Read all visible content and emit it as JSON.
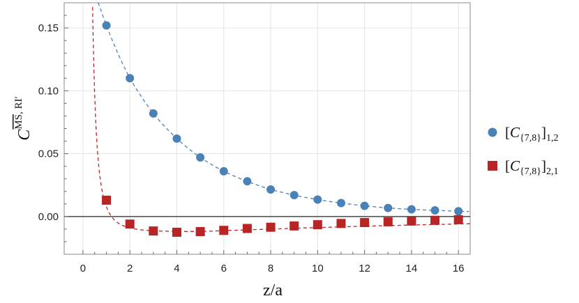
{
  "chart_data": {
    "type": "scatter",
    "xlabel": "z/a",
    "ylabel": {
      "base": "C",
      "superscript_overlined": "MS",
      "superscript_rest": ", RI′"
    },
    "xlim": [
      -0.8,
      16.5
    ],
    "ylim": [
      -0.03,
      0.17
    ],
    "xticks": [
      0,
      2,
      4,
      6,
      8,
      10,
      12,
      14,
      16
    ],
    "yticks": [
      0.0,
      0.05,
      0.1,
      0.15
    ],
    "ytick_labels": [
      "0.00",
      "0.05",
      "0.10",
      "0.15"
    ],
    "grid": true,
    "legend_position": "right",
    "series": [
      {
        "name": "[C{7,8}]1,2",
        "legend": {
          "open": "[",
          "letter": "C",
          "sub_in": "{7,8}",
          "close": "]",
          "sub_out": "1,2"
        },
        "marker": "circle",
        "color": "#4a82b8",
        "x": [
          1,
          2,
          3,
          4,
          5,
          6,
          7,
          8,
          9,
          10,
          11,
          12,
          13,
          14,
          15,
          16
        ],
        "y": [
          0.152,
          0.11,
          0.082,
          0.062,
          0.047,
          0.036,
          0.028,
          0.0215,
          0.017,
          0.0135,
          0.0107,
          0.0085,
          0.0068,
          0.0057,
          0.0049,
          0.0042
        ]
      },
      {
        "name": "[C{7,8}]2,1",
        "legend": {
          "open": "[",
          "letter": "C",
          "sub_in": "{7,8}",
          "close": "]",
          "sub_out": "2,1"
        },
        "marker": "square",
        "color": "#b82525",
        "x": [
          1,
          2,
          3,
          4,
          5,
          6,
          7,
          8,
          9,
          10,
          11,
          12,
          13,
          14,
          15,
          16
        ],
        "y": [
          0.013,
          -0.006,
          -0.0115,
          -0.0125,
          -0.012,
          -0.011,
          -0.0095,
          -0.0085,
          -0.0075,
          -0.0065,
          -0.0055,
          -0.0048,
          -0.0042,
          -0.0036,
          -0.003,
          -0.0025
        ]
      }
    ],
    "fit_curves": [
      {
        "series": "[C{7,8}]1,2",
        "style": "dashed",
        "color": "#4a82b8"
      },
      {
        "series": "[C{7,8}]2,1",
        "style": "dashed",
        "color": "#b82525"
      }
    ]
  }
}
